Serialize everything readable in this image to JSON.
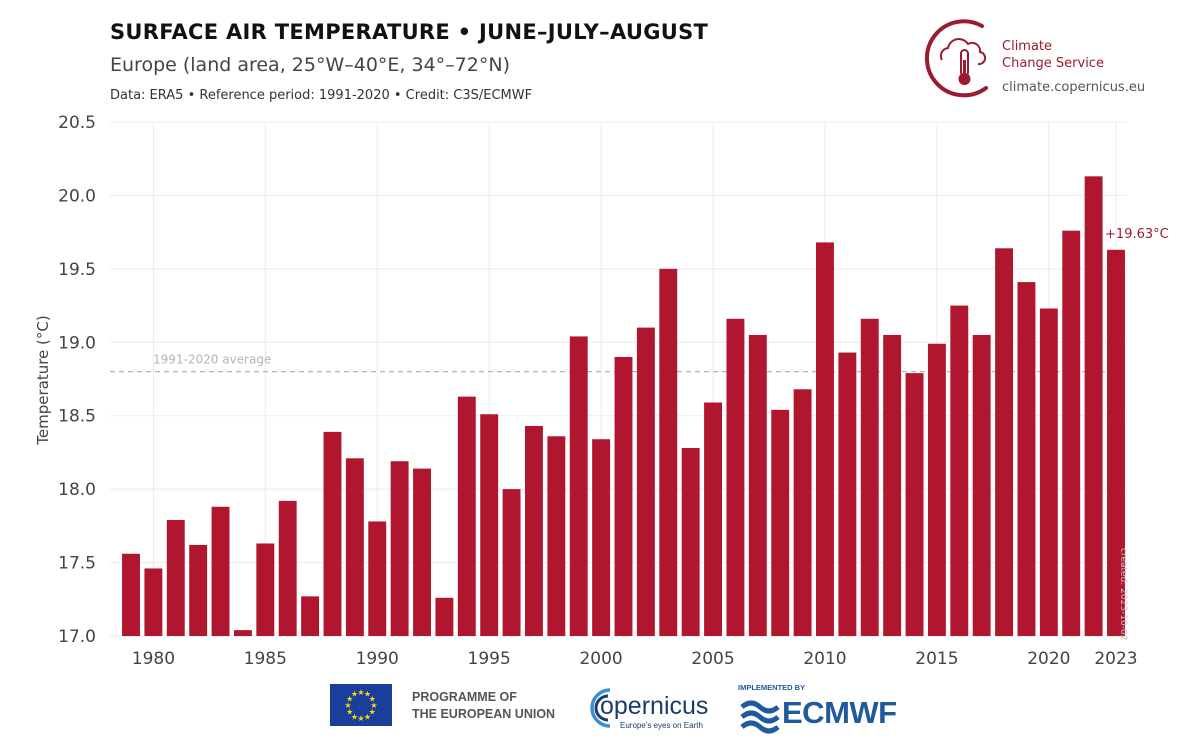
{
  "header": {
    "title": "SURFACE AIR TEMPERATURE • JUNE–JULY–AUGUST",
    "subtitle": "Europe (land area, 25°W–40°E, 34°–72°N)",
    "source": "Data: ERA5 • Reference period: 1991-2020 • Credit: C3S/ECMWF"
  },
  "branding": {
    "c3s_line1": "Climate",
    "c3s_line2": "Change Service",
    "c3s_url": "climate.copernicus.eu",
    "eu_line1": "PROGRAMME OF",
    "eu_line2": "THE EUROPEAN UNION",
    "copernicus": "opernicus",
    "copernicus_tagline": "Europe's eyes on Earth",
    "ecmwf_implemented": "IMPLEMENTED BY",
    "ecmwf": "ECMWF",
    "created": "created: 2023-10-02"
  },
  "colors": {
    "bar": "#b0172e",
    "accent": "#9b1b30",
    "grid": "#ebebeb",
    "reference_line": "#b5b5b5",
    "axis_text": "#444444"
  },
  "chart_data": {
    "type": "bar",
    "title": "SURFACE AIR TEMPERATURE • JUNE–JULY–AUGUST",
    "subtitle": "Europe (land area, 25°W–40°E, 34°–72°N)",
    "xlabel": "",
    "ylabel": "Temperature (°C)",
    "ylim": [
      17.0,
      20.5
    ],
    "yticks": [
      17.0,
      17.5,
      18.0,
      18.5,
      19.0,
      19.5,
      20.0,
      20.5
    ],
    "xticks": [
      1980,
      1985,
      1990,
      1995,
      2000,
      2005,
      2010,
      2015,
      2020,
      2023
    ],
    "grid": true,
    "x": [
      1979,
      1980,
      1981,
      1982,
      1983,
      1984,
      1985,
      1986,
      1987,
      1988,
      1989,
      1990,
      1991,
      1992,
      1993,
      1994,
      1995,
      1996,
      1997,
      1998,
      1999,
      2000,
      2001,
      2002,
      2003,
      2004,
      2005,
      2006,
      2007,
      2008,
      2009,
      2010,
      2011,
      2012,
      2013,
      2014,
      2015,
      2016,
      2017,
      2018,
      2019,
      2020,
      2021,
      2022,
      2023
    ],
    "values": [
      17.56,
      17.46,
      17.79,
      17.62,
      17.88,
      17.04,
      17.63,
      17.92,
      17.27,
      18.39,
      18.21,
      17.78,
      18.19,
      18.14,
      17.26,
      18.63,
      18.51,
      18.0,
      18.43,
      18.36,
      19.04,
      18.34,
      18.9,
      19.1,
      19.5,
      18.28,
      18.59,
      19.16,
      19.05,
      18.54,
      18.68,
      19.68,
      18.93,
      19.16,
      19.05,
      18.79,
      18.99,
      19.25,
      19.05,
      19.64,
      19.41,
      19.23,
      19.76,
      20.13,
      19.63
    ],
    "reference_line": {
      "value": 18.8,
      "label": "1991-2020 average"
    },
    "annotations": [
      {
        "x": 2023,
        "text": "+19.63°C"
      }
    ]
  }
}
